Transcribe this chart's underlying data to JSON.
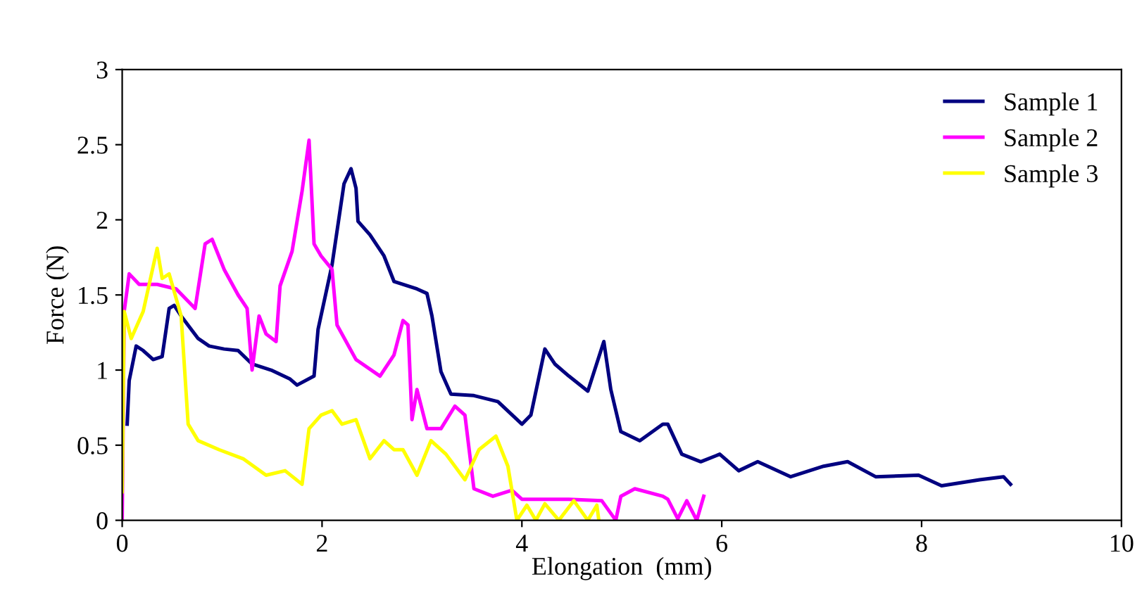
{
  "chart_data": {
    "type": "line",
    "xlabel": "Elongation  (mm)",
    "ylabel": "Force (N)",
    "xlim": [
      0,
      10
    ],
    "ylim": [
      0,
      3
    ],
    "xticks": [
      0,
      2,
      4,
      6,
      8,
      10
    ],
    "yticks": [
      0,
      0.5,
      1,
      1.5,
      2,
      2.5,
      3
    ],
    "grid": false,
    "legend": "top right",
    "marker": "none",
    "line_style": "solid",
    "series": [
      {
        "name": "Sample 1",
        "color": "#000080",
        "x": [
          0.05,
          0.07,
          0.14,
          0.21,
          0.31,
          0.4,
          0.47,
          0.52,
          0.59,
          0.76,
          0.87,
          1.02,
          1.16,
          1.3,
          1.49,
          1.68,
          1.75,
          1.92,
          1.96,
          2.1,
          2.22,
          2.29,
          2.34,
          2.36,
          2.48,
          2.62,
          2.72,
          2.95,
          3.05,
          3.1,
          3.19,
          3.29,
          3.52,
          3.76,
          4.0,
          4.09,
          4.23,
          4.33,
          4.47,
          4.66,
          4.82,
          4.89,
          4.99,
          5.18,
          5.41,
          5.46,
          5.6,
          5.79,
          5.98,
          6.17,
          6.36,
          6.69,
          7.02,
          7.26,
          7.54,
          7.97,
          8.2,
          8.58,
          8.82,
          8.89
        ],
        "values": [
          0.64,
          0.93,
          1.16,
          1.13,
          1.07,
          1.09,
          1.41,
          1.43,
          1.36,
          1.21,
          1.16,
          1.14,
          1.13,
          1.04,
          1.0,
          0.94,
          0.9,
          0.96,
          1.27,
          1.7,
          2.24,
          2.34,
          2.21,
          1.99,
          1.9,
          1.76,
          1.59,
          1.54,
          1.51,
          1.36,
          0.99,
          0.84,
          0.83,
          0.79,
          0.64,
          0.7,
          1.14,
          1.04,
          0.96,
          0.86,
          1.19,
          0.87,
          0.59,
          0.53,
          0.64,
          0.64,
          0.44,
          0.39,
          0.44,
          0.33,
          0.39,
          0.29,
          0.36,
          0.39,
          0.29,
          0.3,
          0.23,
          0.27,
          0.29,
          0.24
        ]
      },
      {
        "name": "Sample 2",
        "color": "#ff00ff",
        "x": [
          0,
          0.02,
          0.07,
          0.17,
          0.35,
          0.54,
          0.73,
          0.83,
          0.9,
          1.02,
          1.16,
          1.25,
          1.3,
          1.37,
          1.44,
          1.54,
          1.58,
          1.7,
          1.8,
          1.87,
          1.92,
          1.99,
          2.1,
          2.15,
          2.34,
          2.58,
          2.72,
          2.81,
          2.86,
          2.9,
          2.95,
          3.05,
          3.19,
          3.33,
          3.43,
          3.52,
          3.71,
          3.9,
          4.0,
          4.47,
          4.8,
          4.94,
          4.99,
          5.13,
          5.41,
          5.46,
          5.56,
          5.65,
          5.75,
          5.82
        ],
        "values": [
          0,
          1.39,
          1.64,
          1.57,
          1.57,
          1.54,
          1.41,
          1.84,
          1.87,
          1.67,
          1.5,
          1.41,
          1.0,
          1.36,
          1.24,
          1.19,
          1.56,
          1.79,
          2.19,
          2.53,
          1.84,
          1.76,
          1.67,
          1.3,
          1.07,
          0.96,
          1.1,
          1.33,
          1.3,
          0.67,
          0.87,
          0.61,
          0.61,
          0.76,
          0.7,
          0.21,
          0.16,
          0.2,
          0.14,
          0.14,
          0.13,
          0.0,
          0.16,
          0.21,
          0.16,
          0.14,
          0.01,
          0.13,
          0,
          0.16
        ]
      },
      {
        "name": "Sample 3",
        "color": "#ffff00",
        "x": [
          0,
          0.02,
          0.09,
          0.21,
          0.35,
          0.4,
          0.47,
          0.59,
          0.66,
          0.76,
          0.97,
          1.21,
          1.44,
          1.63,
          1.8,
          1.87,
          1.99,
          2.1,
          2.2,
          2.34,
          2.48,
          2.62,
          2.72,
          2.81,
          2.95,
          3.09,
          3.24,
          3.43,
          3.57,
          3.74,
          3.86,
          3.95,
          4.05,
          4.14,
          4.23,
          4.37,
          4.52,
          4.66,
          4.75,
          4.77
        ],
        "values": [
          0.19,
          1.39,
          1.21,
          1.39,
          1.81,
          1.61,
          1.64,
          1.36,
          0.64,
          0.53,
          0.47,
          0.41,
          0.3,
          0.33,
          0.24,
          0.61,
          0.7,
          0.73,
          0.64,
          0.67,
          0.41,
          0.53,
          0.47,
          0.47,
          0.3,
          0.53,
          0.44,
          0.27,
          0.47,
          0.56,
          0.36,
          0,
          0.1,
          0,
          0.11,
          0,
          0.13,
          0,
          0.1,
          0
        ]
      }
    ]
  }
}
